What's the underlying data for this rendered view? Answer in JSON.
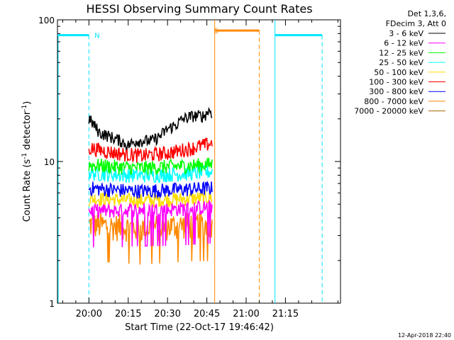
{
  "chart_data": {
    "type": "line",
    "title": "HESSI Observing Summary Count Rates",
    "xlabel": "Start Time (22-Oct-17 19:46:42)",
    "ylabel": "Count Rate (s",
    "ylabel_sup": "-1",
    "ylabel_tail": " detector",
    "ylabel_sup2": "-1",
    "ylabel_close": ")",
    "yscale": "log",
    "ylim": [
      1,
      100
    ],
    "xlim_minutes": [
      -12,
      96
    ],
    "y_ticks": [
      {
        "value": 1,
        "label": "1"
      },
      {
        "value": 10,
        "label": "10"
      },
      {
        "value": 100,
        "label": "100"
      }
    ],
    "x_ticks": [
      {
        "minute": 0,
        "label": "20:00"
      },
      {
        "minute": 15,
        "label": "20:15"
      },
      {
        "minute": 30,
        "label": "20:30"
      },
      {
        "minute": 45,
        "label": "20:45"
      },
      {
        "minute": 60,
        "label": "21:00"
      },
      {
        "minute": 75,
        "label": "21:15"
      }
    ],
    "legend_header": [
      "Det 1,3,6,",
      "FDecim 3, Att 0"
    ],
    "series": [
      {
        "name": "3 - 6 keV",
        "color": "#000000",
        "points": [
          [
            0,
            20
          ],
          [
            4,
            16
          ],
          [
            8,
            15
          ],
          [
            12,
            14
          ],
          [
            15,
            13
          ],
          [
            18,
            14
          ],
          [
            20,
            14
          ],
          [
            24,
            14
          ],
          [
            27,
            15
          ],
          [
            30,
            17
          ],
          [
            33,
            18
          ],
          [
            36,
            20
          ],
          [
            40,
            21
          ],
          [
            44,
            21
          ],
          [
            46,
            23
          ],
          [
            47,
            22
          ]
        ]
      },
      {
        "name": "6 - 12 keV",
        "color": "#ff00ff",
        "points": [
          [
            0,
            4.5
          ],
          [
            10,
            4.5
          ],
          [
            20,
            4.6
          ],
          [
            30,
            4.6
          ],
          [
            40,
            4.7
          ],
          [
            47,
            4.8
          ]
        ]
      },
      {
        "name": "12 - 25 keV",
        "color": "#00ff00",
        "points": [
          [
            0,
            9.5
          ],
          [
            10,
            9.2
          ],
          [
            20,
            9.0
          ],
          [
            30,
            9.2
          ],
          [
            40,
            9.4
          ],
          [
            47,
            9.6
          ]
        ]
      },
      {
        "name": "25 - 50 keV",
        "color": "#00ffff",
        "points": [
          [
            0,
            8.3
          ],
          [
            10,
            8.1
          ],
          [
            20,
            8.0
          ],
          [
            30,
            8.1
          ],
          [
            40,
            8.3
          ],
          [
            47,
            8.5
          ]
        ]
      },
      {
        "name": "50 - 100 keV",
        "color": "#ffdd00",
        "points": [
          [
            0,
            5.5
          ],
          [
            10,
            5.4
          ],
          [
            20,
            5.3
          ],
          [
            30,
            5.4
          ],
          [
            40,
            5.5
          ],
          [
            47,
            5.6
          ]
        ]
      },
      {
        "name": "100 - 300 keV",
        "color": "#ff0000",
        "points": [
          [
            0,
            12.5
          ],
          [
            10,
            11.5
          ],
          [
            20,
            11.0
          ],
          [
            30,
            11.5
          ],
          [
            40,
            12.5
          ],
          [
            47,
            13.5
          ]
        ]
      },
      {
        "name": "300 - 800 keV",
        "color": "#0000ff",
        "points": [
          [
            0,
            6.5
          ],
          [
            10,
            6.3
          ],
          [
            20,
            6.2
          ],
          [
            30,
            6.3
          ],
          [
            40,
            6.4
          ],
          [
            47,
            6.5
          ]
        ]
      },
      {
        "name": "800 - 7000 keV",
        "color": "#ff8800",
        "points": [
          [
            0,
            3.6
          ],
          [
            10,
            3.5
          ],
          [
            20,
            3.4
          ],
          [
            30,
            3.5
          ],
          [
            40,
            3.6
          ],
          [
            47,
            3.6
          ]
        ]
      },
      {
        "name": "7000 - 20000 keV",
        "color": "#aa6600",
        "points": []
      }
    ],
    "annotations": [
      {
        "text": "N",
        "color": "#00e5ff",
        "minute": 0.5,
        "value": 78
      },
      {
        "text": "S",
        "color": "#ff8800",
        "minute": 46,
        "value": 84
      }
    ],
    "night_intervals_minutes": [
      [
        -12,
        0
      ],
      [
        71,
        89
      ]
    ],
    "saa_interval_minutes": [
      48,
      65
    ],
    "footer_date": "12-Apr-2018 22:40"
  }
}
